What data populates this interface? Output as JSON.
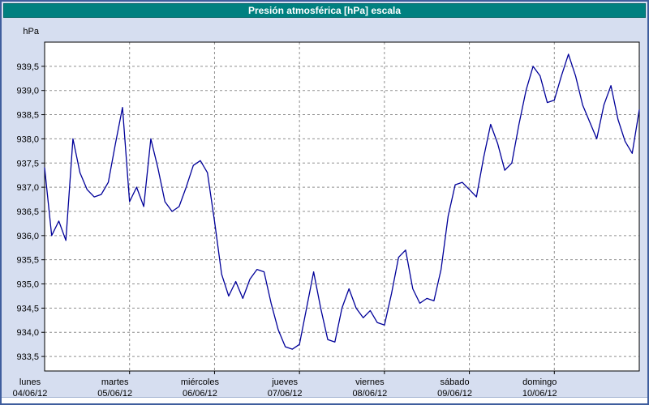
{
  "window": {
    "title": "Presión atmosférica [hPa] escala"
  },
  "colors": {
    "frame": "#3f5e9e",
    "background": "#d6def0",
    "titlebar": "#008080",
    "titlebar_text": "#ffffff",
    "plot_bg": "#ffffff",
    "grid": "#8f8f8f",
    "axis": "#000000",
    "text": "#000000",
    "line": "#000099"
  },
  "chart_data": {
    "type": "line",
    "title": "Presión atmosférica [hPa] escala",
    "xlabel": "",
    "ylabel": "hPa",
    "ylim": [
      933.2,
      940.0
    ],
    "grid": true,
    "legend": false,
    "yticks": [
      939.5,
      939.0,
      938.5,
      938.0,
      937.5,
      937.0,
      936.5,
      936.0,
      935.5,
      935.0,
      934.5,
      934.0,
      933.5
    ],
    "ytick_labels": [
      "939,5",
      "939,0",
      "938,5",
      "938,0",
      "937,5",
      "937,0",
      "936,5",
      "936,0",
      "935,5",
      "935,0",
      "934,5",
      "934,0",
      "933,5"
    ],
    "x_days": [
      {
        "name": "lunes",
        "date": "04/06/12"
      },
      {
        "name": "martes",
        "date": "05/06/12"
      },
      {
        "name": "miércoles",
        "date": "06/06/12"
      },
      {
        "name": "jueves",
        "date": "07/06/12"
      },
      {
        "name": "viernes",
        "date": "08/06/12"
      },
      {
        "name": "sábado",
        "date": "09/06/12"
      },
      {
        "name": "domingo",
        "date": "10/06/12"
      }
    ],
    "sample_interval_hours": 2,
    "series": [
      {
        "name": "Presión atmosférica",
        "color": "#000099",
        "values": [
          937.4,
          936.0,
          936.3,
          935.9,
          938.0,
          937.3,
          936.95,
          936.8,
          936.85,
          937.1,
          937.9,
          938.65,
          936.7,
          937.0,
          936.6,
          938.0,
          937.4,
          936.7,
          936.5,
          936.6,
          937.0,
          937.45,
          937.55,
          937.3,
          936.3,
          935.2,
          934.75,
          935.05,
          934.7,
          935.1,
          935.3,
          935.25,
          934.6,
          934.05,
          933.7,
          933.65,
          933.75,
          934.5,
          935.25,
          934.5,
          933.85,
          933.8,
          934.5,
          934.9,
          934.5,
          934.3,
          934.45,
          934.2,
          934.15,
          934.8,
          935.55,
          935.7,
          934.9,
          934.6,
          934.7,
          934.65,
          935.3,
          936.4,
          937.05,
          937.1,
          936.95,
          936.8,
          937.6,
          938.3,
          937.9,
          937.35,
          937.5,
          938.3,
          939.0,
          939.5,
          939.3,
          938.75,
          938.8,
          939.3,
          939.75,
          939.3,
          938.7,
          938.35,
          938.0,
          938.7,
          939.1,
          938.4,
          937.95,
          937.7,
          938.6
        ]
      }
    ]
  }
}
